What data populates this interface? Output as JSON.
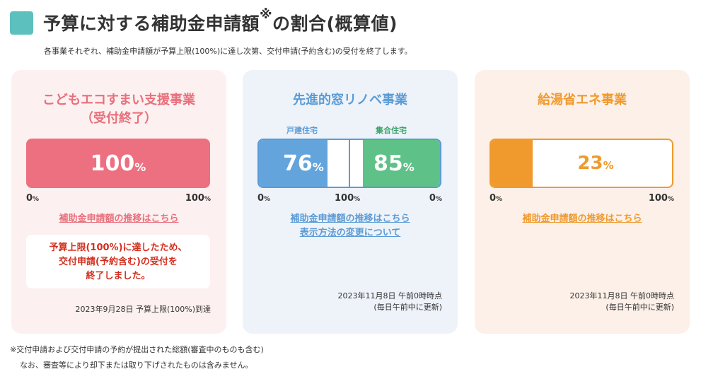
{
  "header": {
    "title": "予算に対する補助金申請額",
    "title_mark": "※",
    "title_suffix": "の割合(概算値)",
    "subtitle": "各事業それぞれ、補助金申請額が予算上限(100%)に達し次第、交付申請(予約含む)の受付を終了します。",
    "accent_color": "#5bc0be"
  },
  "card1": {
    "title_line1": "こどもエコすまい支援事業",
    "title_line2": "（受付終了）",
    "percent_value": 100,
    "percent_number": "100",
    "percent_unit": "%",
    "scale_min": "0",
    "scale_max": "100",
    "scale_unit": "%",
    "link": "補助金申請額の推移はこちら",
    "notice_line1": "予算上限(100%)に達したため、",
    "notice_line2": "交付申請(予約含む)の受付を",
    "notice_line3": "終了しました。",
    "footer": "2023年9月28日 予算上限(100%)到達",
    "color": "#ec7080"
  },
  "card2": {
    "title": "先進的窓リノベ事業",
    "detached_label": "戸建住宅",
    "collective_label": "集合住宅",
    "detached_value": 76,
    "detached_number": "76",
    "collective_value": 85,
    "collective_number": "85",
    "percent_unit": "%",
    "scale_left": "0",
    "scale_mid": "100",
    "scale_right": "0",
    "scale_unit": "%",
    "link1": "補助金申請額の推移はこちら",
    "link2": "表示方法の変更について",
    "footer_line1": "2023年11月8日 午前0時時点",
    "footer_line2": "(毎日午前中に更新)",
    "blue_color": "#63a4dc",
    "green_color": "#5ec187"
  },
  "card3": {
    "title": "給湯省エネ事業",
    "percent_value": 23,
    "percent_number": "23",
    "percent_unit": "%",
    "scale_min": "0",
    "scale_max": "100",
    "scale_unit": "%",
    "link": "補助金申請額の推移はこちら",
    "footer_line1": "2023年11月8日 午前0時時点",
    "footer_line2": "(毎日午前中に更新)",
    "color": "#f09a2e"
  },
  "footnotes": {
    "line1": "※交付申請および交付申請の予約が提出された総額(審査中のものも含む)",
    "line2": "なお、審査等により却下または取り下げされたものは含みません。"
  }
}
